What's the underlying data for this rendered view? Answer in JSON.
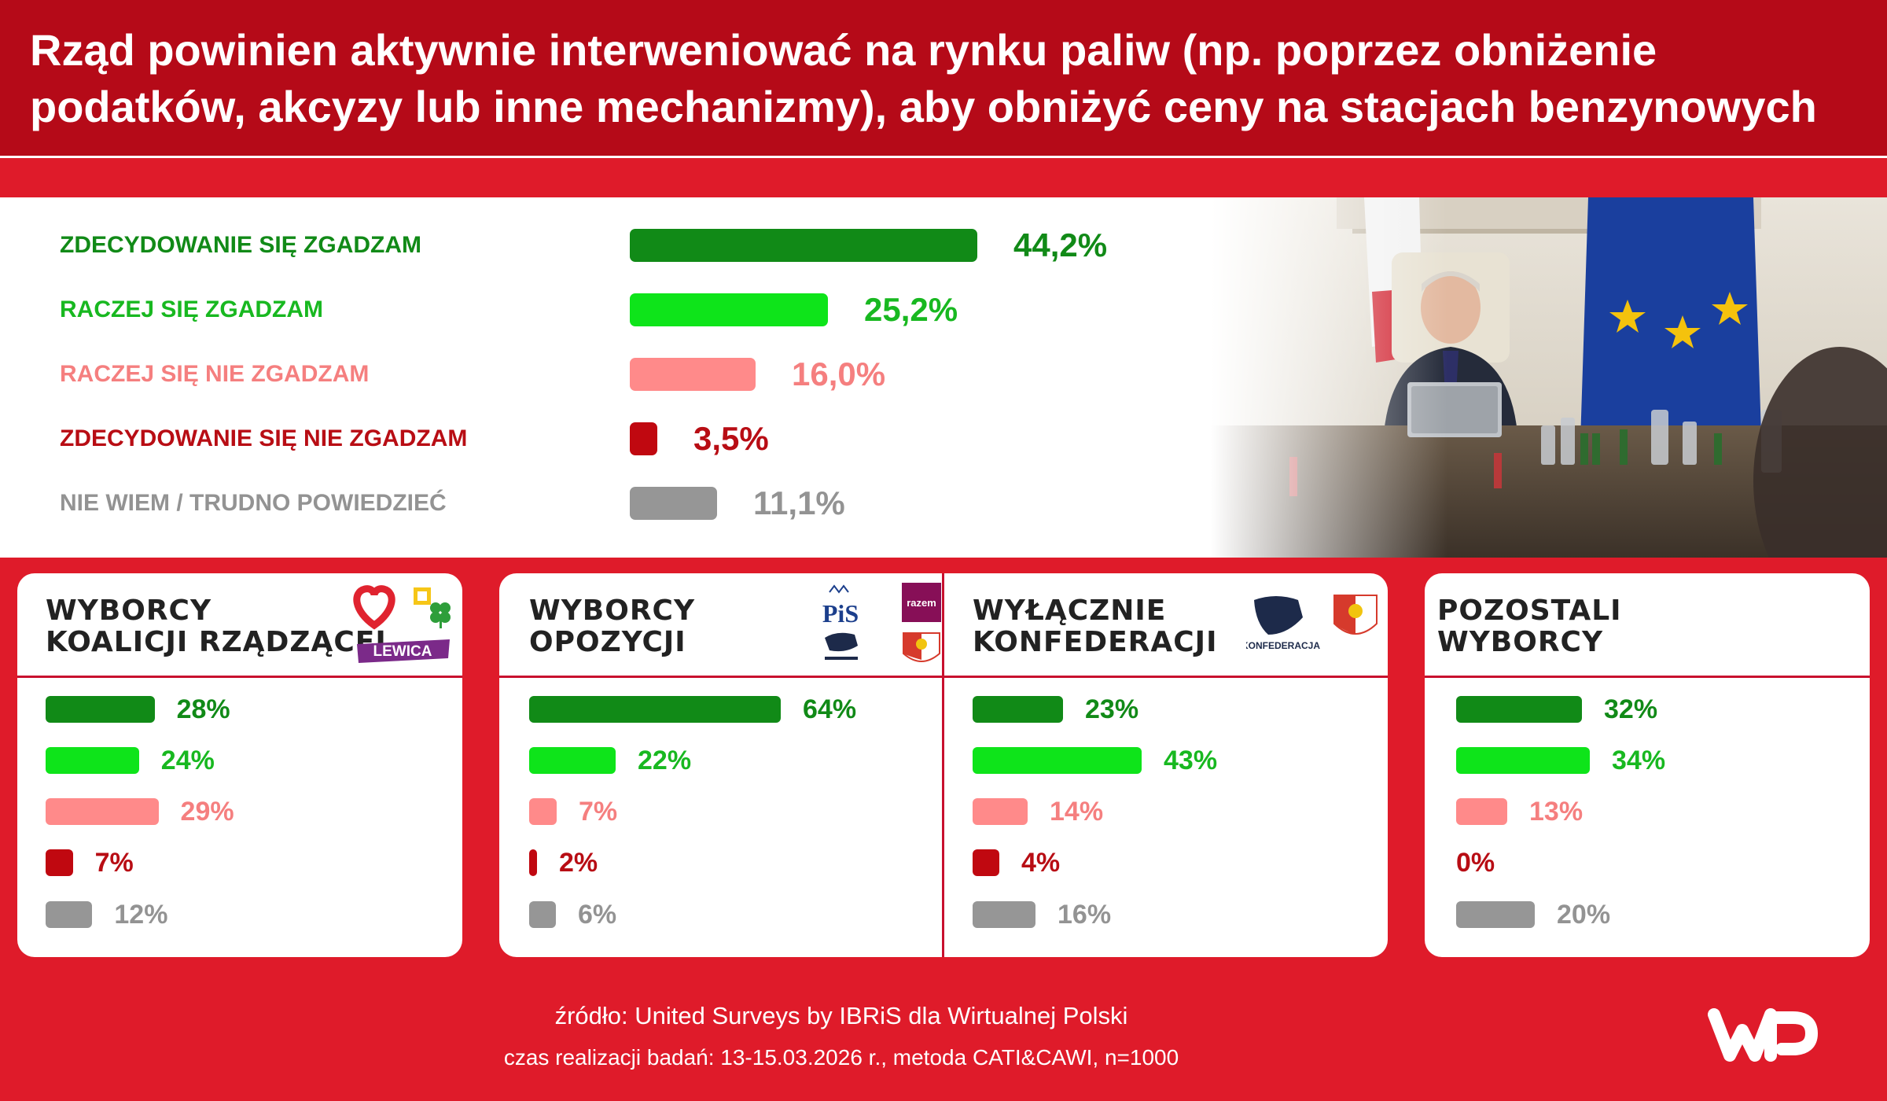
{
  "header": {
    "title_line1": "Rząd powinien aktywnie interweniować na rynku paliw (np. poprzez obniżenie",
    "title_line2": "podatków, akcyzy lub inne mechanizmy), aby obniżyć ceny na stacjach benzynowych"
  },
  "colors": {
    "strongly_agree": "#118a17",
    "rather_agree": "#0ee41a",
    "rather_disagree": "#ff8a8a",
    "strongly_disagree": "#c00810",
    "dont_know": "#969696",
    "strongly_agree_text": "#118a17",
    "rather_agree_text": "#18b820",
    "rather_disagree_text": "#f57f7f",
    "strongly_disagree_text": "#b80d14",
    "dont_know_text": "#939393"
  },
  "chart_data": [
    {
      "type": "bar",
      "title": "Rząd powinien aktywnie interweniować na rynku paliw (np. poprzez obniżenie podatków, akcyzy lub inne mechanizmy), aby obniżyć ceny na stacjach benzynowych",
      "categories": [
        "ZDECYDOWANIE SIĘ ZGADZAM",
        "RACZEJ SIĘ ZGADZAM",
        "RACZEJ SIĘ NIE ZGADZAM",
        "ZDECYDOWANIE SIĘ NIE ZGADZAM",
        "NIE WIEM / TRUDNO POWIEDZIEĆ"
      ],
      "values": [
        44.2,
        25.2,
        16.0,
        3.5,
        11.1
      ],
      "value_labels": [
        "44,2%",
        "25,2%",
        "16,0%",
        "3,5%",
        "11,1%"
      ],
      "orientation": "horizontal"
    },
    {
      "type": "bar",
      "title": "WYBORCY KOALICJI RZĄDZĄCEJ",
      "title_lines": [
        "WYBORCY",
        "KOALICJI RZĄDZĄCEJ"
      ],
      "values": [
        28,
        24,
        29,
        7,
        12
      ],
      "value_labels": [
        "28%",
        "24%",
        "29%",
        "7%",
        "12%"
      ],
      "logos": [
        "heart-logo",
        "polska-2050-logo",
        "psl-clover-logo",
        "lewica-logo"
      ],
      "logo_text": [
        "LEWICA"
      ]
    },
    {
      "type": "bar",
      "title": "WYBORCY OPOZYCJI",
      "title_lines": [
        "WYBORCY",
        "OPOZYCJI"
      ],
      "values": [
        64,
        22,
        7,
        2,
        6
      ],
      "value_labels": [
        "64%",
        "22%",
        "7%",
        "2%",
        "6%"
      ],
      "logos": [
        "pis-logo",
        "razem-logo",
        "konfederacja-logo",
        "korona-logo"
      ],
      "logo_text": [
        "PiS",
        "razem"
      ]
    },
    {
      "type": "bar",
      "title": "WYŁĄCZNIE KONFEDERACJI",
      "title_lines": [
        "WYŁĄCZNIE",
        "KONFEDERACJI"
      ],
      "values": [
        23,
        43,
        14,
        4,
        16
      ],
      "value_labels": [
        "23%",
        "43%",
        "14%",
        "4%",
        "16%"
      ],
      "logos": [
        "konfederacja-logo",
        "korona-logo"
      ],
      "logo_text": [
        "KONFEDERACJA"
      ]
    },
    {
      "type": "bar",
      "title": "POZOSTALI WYBORCY",
      "title_lines": [
        "POZOSTALI",
        "WYBORCY"
      ],
      "values": [
        32,
        34,
        13,
        0,
        20
      ],
      "value_labels": [
        "32%",
        "34%",
        "13%",
        "0%",
        "20%"
      ]
    }
  ],
  "footer": {
    "source": "źródło: United Surveys by IBRiS dla Wirtualnej Polski",
    "method": "czas realizacji badań: 13-15.03.2026 r., metoda CATI&CAWI, n=1000"
  },
  "icons": {
    "photo": "press-conference-photo",
    "brand_logo": "wp-logo"
  }
}
